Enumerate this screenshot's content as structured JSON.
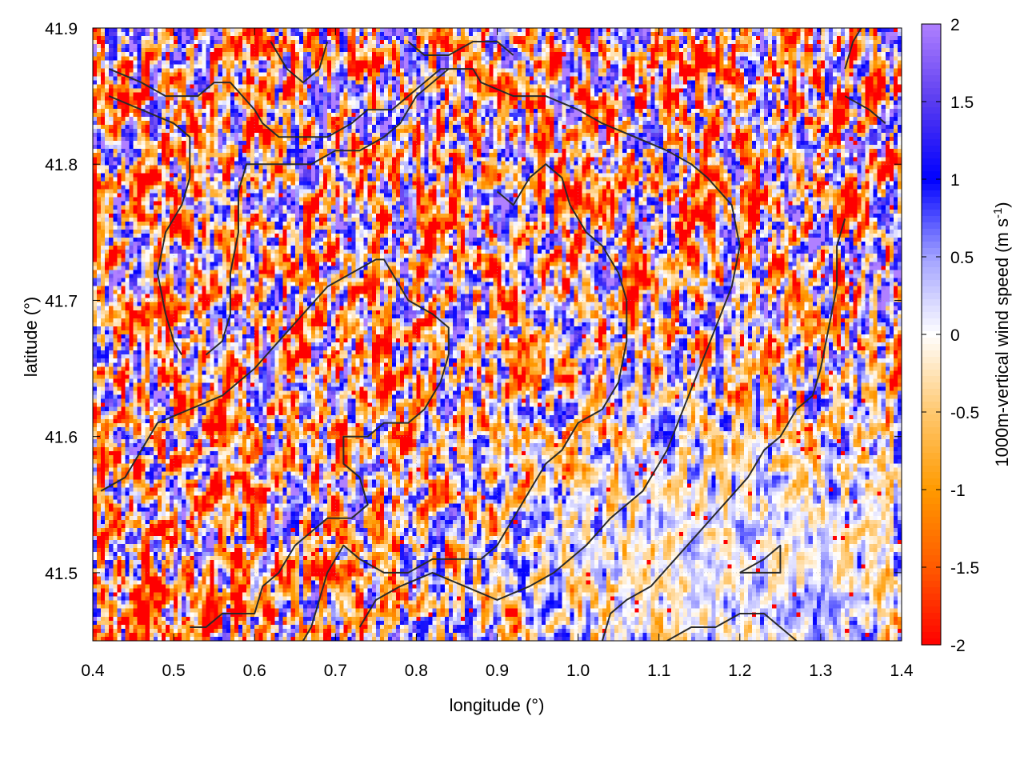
{
  "chart_data": {
    "type": "heatmap",
    "title": "",
    "xlabel": "longitude (°)",
    "ylabel": "latitude (°)",
    "xlim": [
      0.4,
      1.4
    ],
    "ylim": [
      41.45,
      41.9
    ],
    "x_ticks": [
      "0.4",
      "0.5",
      "0.6",
      "0.7",
      "0.8",
      "0.9",
      "1.0",
      "1.1",
      "1.2",
      "1.3",
      "1.4"
    ],
    "y_ticks": [
      "41.5",
      "41.6",
      "41.7",
      "41.8",
      "41.9"
    ],
    "colorbar": {
      "label": "1000m-vertical wind speed (m s",
      "label_superscript": "-1",
      "label_suffix": ")",
      "range": [
        -2,
        2
      ],
      "ticks": [
        "2",
        "1.5",
        "1",
        "0.5",
        "0",
        "-0.5",
        "-1",
        "-1.5",
        "-2"
      ],
      "palette": [
        {
          "value": -2.0,
          "color": "#ff0000"
        },
        {
          "value": -1.5,
          "color": "#ff5a00"
        },
        {
          "value": -1.0,
          "color": "#ff9a00"
        },
        {
          "value": -0.5,
          "color": "#ffc870"
        },
        {
          "value": 0.0,
          "color": "#ffffff"
        },
        {
          "value": 0.5,
          "color": "#a0a0ff"
        },
        {
          "value": 1.0,
          "color": "#0000ff"
        },
        {
          "value": 1.5,
          "color": "#5a3cf0"
        },
        {
          "value": 2.0,
          "color": "#b080ff"
        }
      ]
    },
    "grid": true,
    "field_description_note_removed": true,
    "contours": [
      [
        [
          0.42,
          41.87
        ],
        [
          0.46,
          41.86
        ],
        [
          0.49,
          41.85
        ],
        [
          0.53,
          41.85
        ],
        [
          0.55,
          41.86
        ],
        [
          0.57,
          41.86
        ],
        [
          0.6,
          41.84
        ],
        [
          0.61,
          41.83
        ],
        [
          0.63,
          41.82
        ],
        [
          0.66,
          41.82
        ],
        [
          0.69,
          41.82
        ],
        [
          0.72,
          41.83
        ],
        [
          0.74,
          41.84
        ],
        [
          0.77,
          41.84
        ],
        [
          0.79,
          41.85
        ],
        [
          0.81,
          41.86
        ],
        [
          0.83,
          41.87
        ],
        [
          0.85,
          41.87
        ],
        [
          0.87,
          41.87
        ],
        [
          0.88,
          41.86
        ],
        [
          0.92,
          41.85
        ],
        [
          0.96,
          41.85
        ],
        [
          1.0,
          41.84
        ],
        [
          1.03,
          41.83
        ],
        [
          1.07,
          41.82
        ],
        [
          1.11,
          41.81
        ],
        [
          1.14,
          41.8
        ],
        [
          1.16,
          41.79
        ],
        [
          1.19,
          41.77
        ],
        [
          1.2,
          41.74
        ],
        [
          1.19,
          41.71
        ],
        [
          1.17,
          41.68
        ],
        [
          1.15,
          41.65
        ],
        [
          1.13,
          41.62
        ],
        [
          1.11,
          41.59
        ],
        [
          1.08,
          41.56
        ],
        [
          1.04,
          41.54
        ],
        [
          1.01,
          41.52
        ],
        [
          0.97,
          41.5
        ],
        [
          0.94,
          41.49
        ],
        [
          0.9,
          41.48
        ],
        [
          0.86,
          41.49
        ],
        [
          0.82,
          41.5
        ],
        [
          0.78,
          41.49
        ],
        [
          0.75,
          41.48
        ],
        [
          0.73,
          41.46
        ]
      ],
      [
        [
          0.42,
          41.85
        ],
        [
          0.46,
          41.84
        ],
        [
          0.5,
          41.83
        ],
        [
          0.52,
          41.82
        ],
        [
          0.52,
          41.79
        ],
        [
          0.51,
          41.77
        ],
        [
          0.49,
          41.75
        ],
        [
          0.48,
          41.72
        ],
        [
          0.49,
          41.69
        ],
        [
          0.5,
          41.67
        ],
        [
          0.51,
          41.66
        ]
      ],
      [
        [
          0.41,
          41.56
        ],
        [
          0.44,
          41.57
        ],
        [
          0.46,
          41.59
        ],
        [
          0.48,
          41.61
        ],
        [
          0.52,
          41.62
        ],
        [
          0.56,
          41.63
        ],
        [
          0.6,
          41.65
        ],
        [
          0.63,
          41.67
        ],
        [
          0.66,
          41.69
        ],
        [
          0.69,
          41.71
        ],
        [
          0.72,
          41.72
        ],
        [
          0.75,
          41.73
        ],
        [
          0.76,
          41.73
        ],
        [
          0.77,
          41.72
        ],
        [
          0.79,
          41.7
        ],
        [
          0.82,
          41.69
        ],
        [
          0.84,
          41.68
        ],
        [
          0.84,
          41.66
        ],
        [
          0.83,
          41.64
        ],
        [
          0.81,
          41.62
        ],
        [
          0.79,
          41.61
        ],
        [
          0.76,
          41.61
        ],
        [
          0.74,
          41.6
        ],
        [
          0.71,
          41.6
        ],
        [
          0.71,
          41.58
        ],
        [
          0.73,
          41.57
        ],
        [
          0.74,
          41.55
        ],
        [
          0.72,
          41.54
        ],
        [
          0.69,
          41.54
        ],
        [
          0.67,
          41.53
        ],
        [
          0.65,
          41.52
        ],
        [
          0.63,
          41.5
        ],
        [
          0.61,
          41.49
        ],
        [
          0.6,
          41.47
        ],
        [
          0.58,
          41.47
        ],
        [
          0.56,
          41.47
        ],
        [
          0.54,
          41.46
        ],
        [
          0.52,
          41.46
        ]
      ],
      [
        [
          0.54,
          41.66
        ],
        [
          0.56,
          41.67
        ],
        [
          0.57,
          41.69
        ],
        [
          0.57,
          41.72
        ],
        [
          0.58,
          41.75
        ],
        [
          0.58,
          41.78
        ],
        [
          0.59,
          41.8
        ],
        [
          0.61,
          41.8
        ],
        [
          0.64,
          41.8
        ],
        [
          0.67,
          41.8
        ],
        [
          0.7,
          41.81
        ],
        [
          0.73,
          41.81
        ],
        [
          0.76,
          41.82
        ],
        [
          0.78,
          41.83
        ],
        [
          0.8,
          41.85
        ],
        [
          0.82,
          41.86
        ],
        [
          0.84,
          41.87
        ]
      ],
      [
        [
          0.9,
          41.78
        ],
        [
          0.92,
          41.77
        ],
        [
          0.94,
          41.79
        ],
        [
          0.96,
          41.8
        ],
        [
          0.98,
          41.79
        ],
        [
          0.99,
          41.77
        ],
        [
          1.01,
          41.75
        ],
        [
          1.03,
          41.74
        ],
        [
          1.05,
          41.72
        ],
        [
          1.06,
          41.7
        ],
        [
          1.06,
          41.67
        ],
        [
          1.05,
          41.64
        ],
        [
          1.03,
          41.62
        ],
        [
          1.0,
          41.61
        ],
        [
          0.98,
          41.59
        ],
        [
          0.96,
          41.58
        ],
        [
          0.94,
          41.56
        ],
        [
          0.92,
          41.54
        ],
        [
          0.9,
          41.52
        ],
        [
          0.88,
          41.51
        ],
        [
          0.85,
          41.51
        ],
        [
          0.82,
          41.51
        ],
        [
          0.79,
          41.5
        ],
        [
          0.76,
          41.5
        ],
        [
          0.73,
          41.51
        ],
        [
          0.71,
          41.52
        ],
        [
          0.69,
          41.5
        ],
        [
          0.68,
          41.48
        ],
        [
          0.67,
          41.46
        ],
        [
          0.66,
          41.45
        ]
      ],
      [
        [
          1.33,
          41.76
        ],
        [
          1.32,
          41.74
        ],
        [
          1.32,
          41.71
        ],
        [
          1.31,
          41.68
        ],
        [
          1.3,
          41.65
        ],
        [
          1.29,
          41.63
        ],
        [
          1.27,
          41.62
        ],
        [
          1.25,
          41.6
        ],
        [
          1.23,
          41.59
        ],
        [
          1.21,
          41.57
        ],
        [
          1.18,
          41.55
        ],
        [
          1.15,
          41.53
        ],
        [
          1.12,
          41.51
        ],
        [
          1.09,
          41.49
        ],
        [
          1.06,
          41.48
        ],
        [
          1.04,
          41.47
        ],
        [
          1.03,
          41.45
        ]
      ],
      [
        [
          1.2,
          41.5
        ],
        [
          1.23,
          41.51
        ],
        [
          1.25,
          41.52
        ],
        [
          1.25,
          41.5
        ],
        [
          1.23,
          41.5
        ],
        [
          1.2,
          41.5
        ]
      ],
      [
        [
          1.11,
          41.45
        ],
        [
          1.14,
          41.46
        ],
        [
          1.17,
          41.46
        ],
        [
          1.2,
          41.47
        ],
        [
          1.23,
          41.47
        ],
        [
          1.25,
          41.46
        ],
        [
          1.27,
          41.45
        ]
      ],
      [
        [
          1.33,
          41.87
        ],
        [
          1.34,
          41.89
        ],
        [
          1.35,
          41.9
        ]
      ],
      [
        [
          1.33,
          41.85
        ],
        [
          1.36,
          41.84
        ],
        [
          1.38,
          41.83
        ]
      ],
      [
        [
          0.62,
          41.89
        ],
        [
          0.64,
          41.87
        ],
        [
          0.66,
          41.86
        ],
        [
          0.68,
          41.87
        ],
        [
          0.69,
          41.89
        ]
      ],
      [
        [
          0.79,
          41.89
        ],
        [
          0.81,
          41.88
        ],
        [
          0.84,
          41.88
        ],
        [
          0.87,
          41.89
        ],
        [
          0.9,
          41.89
        ],
        [
          0.92,
          41.88
        ]
      ]
    ]
  }
}
